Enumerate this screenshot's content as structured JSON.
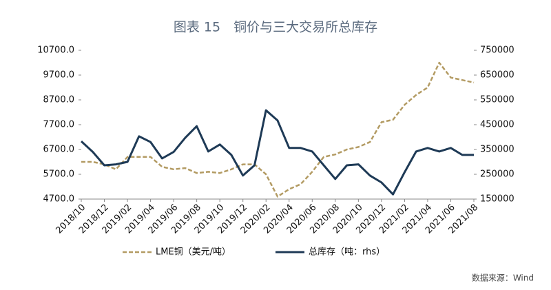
{
  "chart_data": {
    "type": "line",
    "title": "图表 15　铜价与三大交易所总库存",
    "source": "数据来源：Wind",
    "categories": [
      "2018/10",
      null,
      "2018/12",
      null,
      "2019/02",
      null,
      "2019/04",
      null,
      "2019/06",
      null,
      "2019/08",
      null,
      "2019/10",
      null,
      "2019/12",
      null,
      "2020/02",
      null,
      "2020/04",
      null,
      "2020/06",
      null,
      "2020/08",
      null,
      "2020/10",
      null,
      "2020/12",
      null,
      "2021/02",
      null,
      "2021/04",
      null,
      "2021/06",
      null,
      "2021/08"
    ],
    "series": [
      {
        "name": "LME铜（美元/吨）",
        "color": "#b39b63",
        "dash": true,
        "values": [
          6200,
          6200,
          6100,
          5900,
          6400,
          6400,
          6400,
          6000,
          5900,
          5950,
          5750,
          5800,
          5750,
          5900,
          6100,
          6100,
          5700,
          4800,
          5100,
          5300,
          5800,
          6400,
          6500,
          6700,
          6800,
          7000,
          7800,
          7900,
          8500,
          8900,
          9200,
          10200,
          9600,
          9500,
          9400
        ]
      },
      {
        "name": "总库存（吨：rhs）",
        "color": "#1e3a56",
        "axis": "y2",
        "values": [
          383000,
          340000,
          286000,
          290000,
          300000,
          403000,
          380000,
          314000,
          340000,
          397000,
          444000,
          342000,
          370000,
          328000,
          245000,
          286000,
          508000,
          467000,
          356000,
          356000,
          342000,
          286000,
          231000,
          286000,
          290000,
          245000,
          217000,
          169000,
          258000,
          342000,
          356000,
          342000,
          356000,
          328000,
          328000
        ]
      }
    ],
    "ylim": [
      4700,
      10700
    ],
    "yticks": [
      {
        "value": 4700,
        "label": "4700.0"
      },
      {
        "value": 5700,
        "label": "5700.0"
      },
      {
        "value": 6700,
        "label": "6700.0"
      },
      {
        "value": 7700,
        "label": "7700.0"
      },
      {
        "value": 8700,
        "label": "8700.0"
      },
      {
        "value": 9700,
        "label": "9700.0"
      },
      {
        "value": 10700,
        "label": "10700.0"
      }
    ],
    "y2lim": [
      150000,
      750000
    ],
    "y2ticks": [
      150000,
      250000,
      350000,
      450000,
      550000,
      650000,
      750000
    ]
  }
}
